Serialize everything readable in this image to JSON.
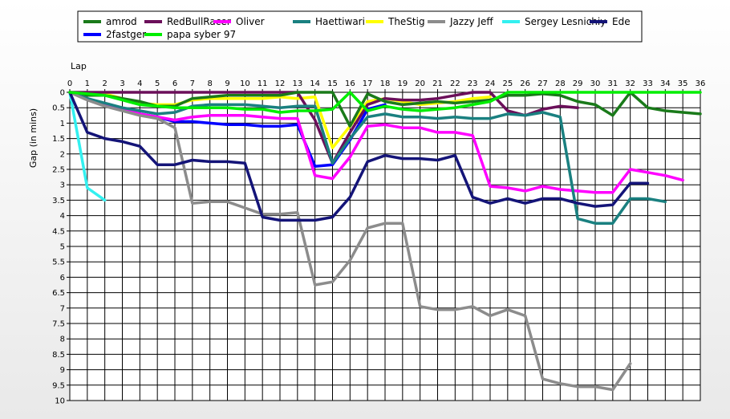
{
  "chart_data": {
    "type": "line",
    "xlabel": "Lap",
    "ylabel": "Gap (in mins)",
    "xlim": [
      0,
      36
    ],
    "ylim": [
      0,
      10
    ],
    "y_inverted": true,
    "grid": true,
    "legend_position": "top",
    "x_ticks": [
      "0",
      "1",
      "2",
      "3",
      "4",
      "5",
      "6",
      "7",
      "8",
      "9",
      "10",
      "11",
      "12",
      "13",
      "14",
      "15",
      "16",
      "17",
      "18",
      "19",
      "20",
      "21",
      "22",
      "23",
      "24",
      "25",
      "26",
      "27",
      "28",
      "29",
      "30",
      "31",
      "32",
      "33",
      "34",
      "35",
      "36"
    ],
    "y_ticks": [
      "0",
      "0.5",
      "1",
      "1.5",
      "2",
      "2.5",
      "3",
      "3.5",
      "4",
      "4.5",
      "5",
      "5.5",
      "6",
      "6.5",
      "7",
      "7.5",
      "8",
      "8.5",
      "9",
      "9.5",
      "10"
    ],
    "series": [
      {
        "name": "amrod",
        "color": "#1a7a1a",
        "x": [
          0,
          1,
          2,
          3,
          4,
          5,
          6,
          7,
          8,
          9,
          10,
          11,
          12,
          13,
          14,
          15,
          16,
          17,
          18,
          19,
          20,
          21,
          22,
          23,
          24,
          25,
          26,
          27,
          28,
          29,
          30,
          31,
          32,
          33,
          34,
          35,
          36
        ],
        "y": [
          0,
          0.1,
          0.1,
          0.2,
          0.3,
          0.45,
          0.45,
          0.2,
          0.15,
          0.1,
          0.1,
          0.1,
          0.1,
          0,
          0,
          0,
          1.1,
          0.05,
          0.3,
          0.4,
          0.35,
          0.3,
          0.35,
          0.3,
          0.25,
          0.1,
          0.1,
          0.05,
          0.1,
          0.3,
          0.4,
          0.75,
          0,
          0.5,
          0.6,
          0.65,
          0.7
        ]
      },
      {
        "name": "RedBullRacer",
        "color": "#6b0f5a",
        "x": [
          0,
          1,
          2,
          3,
          4,
          5,
          6,
          7,
          8,
          9,
          10,
          11,
          12,
          13,
          14,
          15,
          16,
          17,
          18,
          19,
          20,
          21,
          22,
          23,
          24,
          25,
          26,
          27,
          28,
          29
        ],
        "y": [
          0,
          0,
          0,
          0,
          0,
          0,
          0,
          0,
          0,
          0,
          0,
          0,
          0,
          0,
          0.9,
          2.3,
          1.3,
          0.4,
          0.2,
          0.25,
          0.25,
          0.2,
          0.1,
          0,
          0,
          0.6,
          0.75,
          0.55,
          0.45,
          0.5
        ]
      },
      {
        "name": "Oliver",
        "color": "#ff00ff",
        "x": [
          0,
          1,
          2,
          3,
          4,
          5,
          6,
          7,
          8,
          9,
          10,
          11,
          12,
          13,
          14,
          15,
          16,
          17,
          18,
          19,
          20,
          21,
          22,
          23,
          24,
          25,
          26,
          27,
          28,
          29,
          30,
          31,
          32,
          33,
          34,
          35
        ],
        "y": [
          0,
          0.2,
          0.4,
          0.55,
          0.7,
          0.8,
          0.9,
          0.8,
          0.75,
          0.75,
          0.75,
          0.8,
          0.85,
          0.85,
          2.7,
          2.8,
          2.1,
          1.1,
          1.05,
          1.15,
          1.15,
          1.3,
          1.3,
          1.4,
          3.05,
          3.1,
          3.2,
          3.05,
          3.15,
          3.2,
          3.25,
          3.25,
          2.5,
          2.6,
          2.7,
          2.85
        ]
      },
      {
        "name": "Haettiwari",
        "color": "#1a8080",
        "x": [
          0,
          1,
          2,
          3,
          4,
          5,
          6,
          7,
          8,
          9,
          10,
          11,
          12,
          13,
          14,
          15,
          16,
          17,
          18,
          19,
          20,
          21,
          22,
          23,
          24,
          25,
          26,
          27,
          28,
          29,
          30,
          31,
          32,
          33,
          34
        ],
        "y": [
          0,
          0.2,
          0.35,
          0.5,
          0.6,
          0.7,
          0.65,
          0.45,
          0.4,
          0.4,
          0.4,
          0.45,
          0.5,
          0.45,
          0.45,
          2.3,
          1.5,
          0.8,
          0.7,
          0.8,
          0.8,
          0.85,
          0.8,
          0.85,
          0.85,
          0.7,
          0.75,
          0.65,
          0.8,
          4.1,
          4.25,
          4.25,
          3.45,
          3.45,
          3.55
        ]
      },
      {
        "name": "TheStig",
        "color": "#ffff00",
        "x": [
          0,
          1,
          2,
          3,
          4,
          5,
          6,
          7,
          8,
          9,
          10,
          11,
          12,
          13,
          14,
          15,
          16,
          17,
          18,
          19,
          20,
          21,
          22,
          23,
          24
        ],
        "y": [
          0,
          0.05,
          0.05,
          0.2,
          0.35,
          0.4,
          0.4,
          0.25,
          0.2,
          0.2,
          0.2,
          0.2,
          0.15,
          0.2,
          0.15,
          1.8,
          1.1,
          0.3,
          0.2,
          0.3,
          0.4,
          0.35,
          0.3,
          0.2,
          0.15
        ]
      },
      {
        "name": "Jazzy Jeff",
        "color": "#8c8c8c",
        "x": [
          0,
          1,
          2,
          3,
          4,
          5,
          6,
          7,
          8,
          9,
          10,
          11,
          12,
          13,
          14,
          15,
          16,
          17,
          18,
          19,
          20,
          21,
          22,
          23,
          24,
          25,
          26,
          27,
          28,
          29,
          30,
          31,
          32
        ],
        "y": [
          0,
          0.25,
          0.45,
          0.6,
          0.75,
          0.85,
          1.15,
          3.6,
          3.55,
          3.55,
          3.75,
          3.95,
          3.95,
          3.9,
          6.25,
          6.15,
          5.45,
          4.4,
          4.25,
          4.25,
          6.95,
          7.05,
          7.05,
          6.95,
          7.25,
          7.05,
          7.25,
          9.3,
          9.45,
          9.55,
          9.55,
          9.65,
          8.8
        ]
      },
      {
        "name": "Sergey Lesnichiy",
        "color": "#33f0f0",
        "x": [
          0,
          1,
          2
        ],
        "y": [
          0,
          3.1,
          3.5
        ]
      },
      {
        "name": "Ede",
        "color": "#141478",
        "x": [
          0,
          1,
          2,
          3,
          4,
          5,
          6,
          7,
          8,
          9,
          10,
          11,
          12,
          13,
          14,
          15,
          16,
          17,
          18,
          19,
          20,
          21,
          22,
          23,
          24,
          25,
          26,
          27,
          28,
          29,
          30,
          31,
          32,
          33
        ],
        "y": [
          0,
          1.3,
          1.5,
          1.6,
          1.75,
          2.35,
          2.35,
          2.2,
          2.25,
          2.25,
          2.3,
          4.05,
          4.15,
          4.15,
          4.15,
          4.05,
          3.4,
          2.25,
          2.05,
          2.15,
          2.15,
          2.2,
          2.05,
          3.4,
          3.6,
          3.45,
          3.6,
          3.45,
          3.45,
          3.6,
          3.7,
          3.65,
          2.95,
          2.95
        ]
      },
      {
        "name": "2fastger",
        "color": "#0000ff",
        "x": [
          0,
          1,
          2,
          3,
          4,
          5,
          6,
          7,
          8,
          9,
          10,
          11,
          12,
          13,
          14,
          15,
          16,
          17,
          18
        ],
        "y": [
          0,
          0.2,
          0.4,
          0.55,
          0.7,
          0.8,
          0.95,
          0.95,
          1.0,
          1.05,
          1.05,
          1.1,
          1.1,
          1.05,
          2.4,
          2.35,
          1.55,
          0.55,
          0.4
        ]
      },
      {
        "name": "papa syber 97",
        "color": "#00ee00",
        "x": [
          0,
          1,
          2,
          3,
          4,
          5,
          6,
          7,
          8,
          9,
          10,
          11,
          12,
          13,
          14,
          15,
          16,
          17,
          18,
          19,
          20,
          21,
          22,
          23,
          24,
          25,
          26,
          27,
          28,
          29,
          30,
          31,
          32,
          33,
          34,
          35,
          36
        ],
        "y": [
          0,
          0.05,
          0.1,
          0.25,
          0.4,
          0.45,
          0.5,
          0.5,
          0.5,
          0.5,
          0.55,
          0.55,
          0.65,
          0.6,
          0.6,
          0.55,
          0,
          0.6,
          0.45,
          0.55,
          0.6,
          0.55,
          0.5,
          0.4,
          0.3,
          0,
          0,
          0,
          0,
          0,
          0,
          0,
          0,
          0,
          0,
          0,
          0
        ]
      }
    ]
  }
}
